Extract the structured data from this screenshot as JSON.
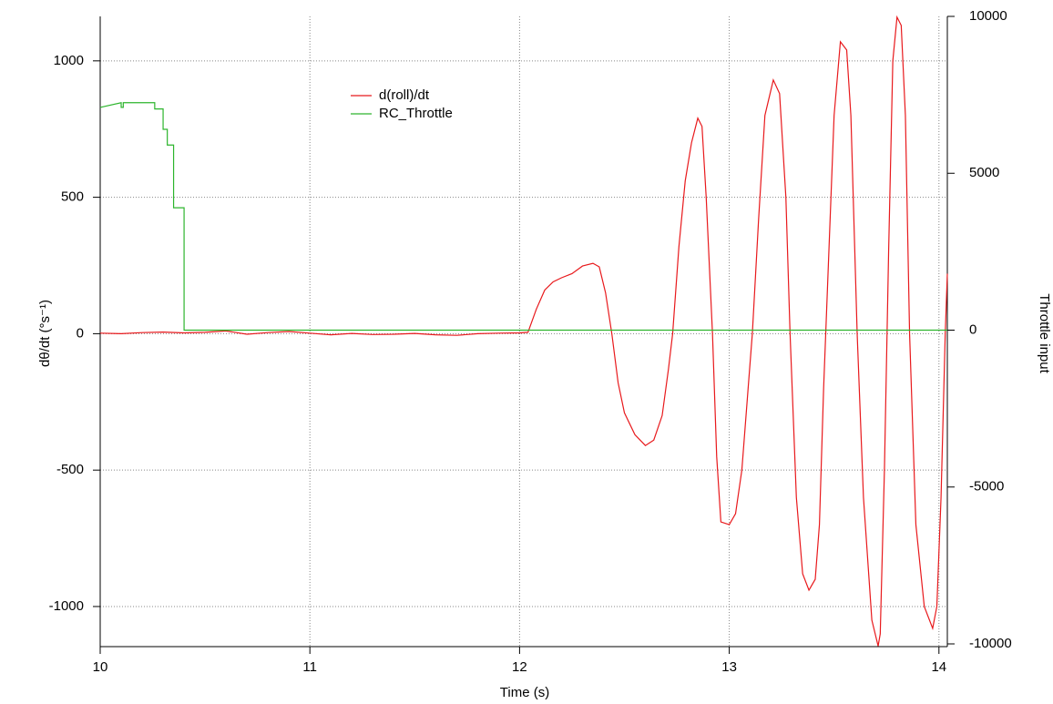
{
  "chart_data": {
    "type": "line",
    "x_label": "Time (s)",
    "y_label": "dθ/dt (°s⁻¹)",
    "y2_label": "Throttle input",
    "xlim": [
      10,
      14.04
    ],
    "xticks": [
      10,
      11,
      12,
      13,
      14
    ],
    "ylim": [
      -1147,
      1163
    ],
    "yticks": [
      -1000,
      -500,
      0,
      500,
      1000
    ],
    "y2lim": [
      -10087,
      10000
    ],
    "y2ticks": [
      -10000,
      -5000,
      0,
      5000,
      10000
    ],
    "grid": true,
    "series": [
      {
        "name": "d(roll)/dt",
        "color": "#e8191c",
        "x": [
          10.0,
          10.1,
          10.2,
          10.3,
          10.4,
          10.5,
          10.6,
          10.7,
          10.8,
          10.9,
          11.0,
          11.1,
          11.2,
          11.3,
          11.4,
          11.5,
          11.6,
          11.7,
          11.8,
          11.9,
          12.0,
          12.04,
          12.08,
          12.12,
          12.16,
          12.2,
          12.25,
          12.3,
          12.35,
          12.38,
          12.41,
          12.44,
          12.47,
          12.5,
          12.55,
          12.6,
          12.64,
          12.68,
          12.71,
          12.73,
          12.76,
          12.79,
          12.82,
          12.85,
          12.87,
          12.89,
          12.92,
          12.94,
          12.96,
          13.0,
          13.03,
          13.06,
          13.09,
          13.11,
          13.14,
          13.17,
          13.21,
          13.24,
          13.27,
          13.29,
          13.32,
          13.35,
          13.38,
          13.41,
          13.43,
          13.45,
          13.47,
          13.5,
          13.53,
          13.56,
          13.58,
          13.61,
          13.64,
          13.68,
          13.71,
          13.72,
          13.74,
          13.76,
          13.78,
          13.8,
          13.82,
          13.84,
          13.86,
          13.89,
          13.93,
          13.97,
          13.99,
          14.01,
          14.03,
          14.04
        ],
        "values": [
          2,
          0,
          4,
          6,
          3,
          5,
          10,
          -2,
          4,
          8,
          2,
          -4,
          1,
          -3,
          -2,
          1,
          -4,
          -6,
          0,
          2,
          3,
          5,
          90,
          160,
          190,
          205,
          220,
          248,
          258,
          245,
          150,
          0,
          -180,
          -290,
          -370,
          -410,
          -390,
          -300,
          -130,
          0,
          320,
          560,
          700,
          790,
          760,
          500,
          0,
          -450,
          -690,
          -700,
          -660,
          -500,
          -200,
          0,
          420,
          800,
          930,
          880,
          500,
          0,
          -600,
          -880,
          -940,
          -900,
          -700,
          -200,
          200,
          800,
          1070,
          1040,
          800,
          0,
          -600,
          -1050,
          -1145,
          -1100,
          -500,
          300,
          1000,
          1160,
          1130,
          800,
          0,
          -700,
          -1000,
          -1080,
          -1000,
          -600,
          0,
          220
        ]
      },
      {
        "name": "RC_Throttle",
        "color": "#2db52d",
        "axis": "y2",
        "x": [
          10.0,
          10.1,
          10.1,
          10.11,
          10.11,
          10.15,
          10.15,
          10.26,
          10.26,
          10.3,
          10.3,
          10.32,
          10.32,
          10.35,
          10.35,
          10.4,
          10.4,
          14.04
        ],
        "values": [
          7100,
          7250,
          7100,
          7100,
          7250,
          7250,
          7250,
          7250,
          7050,
          7050,
          6400,
          6400,
          5900,
          5900,
          3900,
          3900,
          0,
          0
        ]
      }
    ]
  }
}
